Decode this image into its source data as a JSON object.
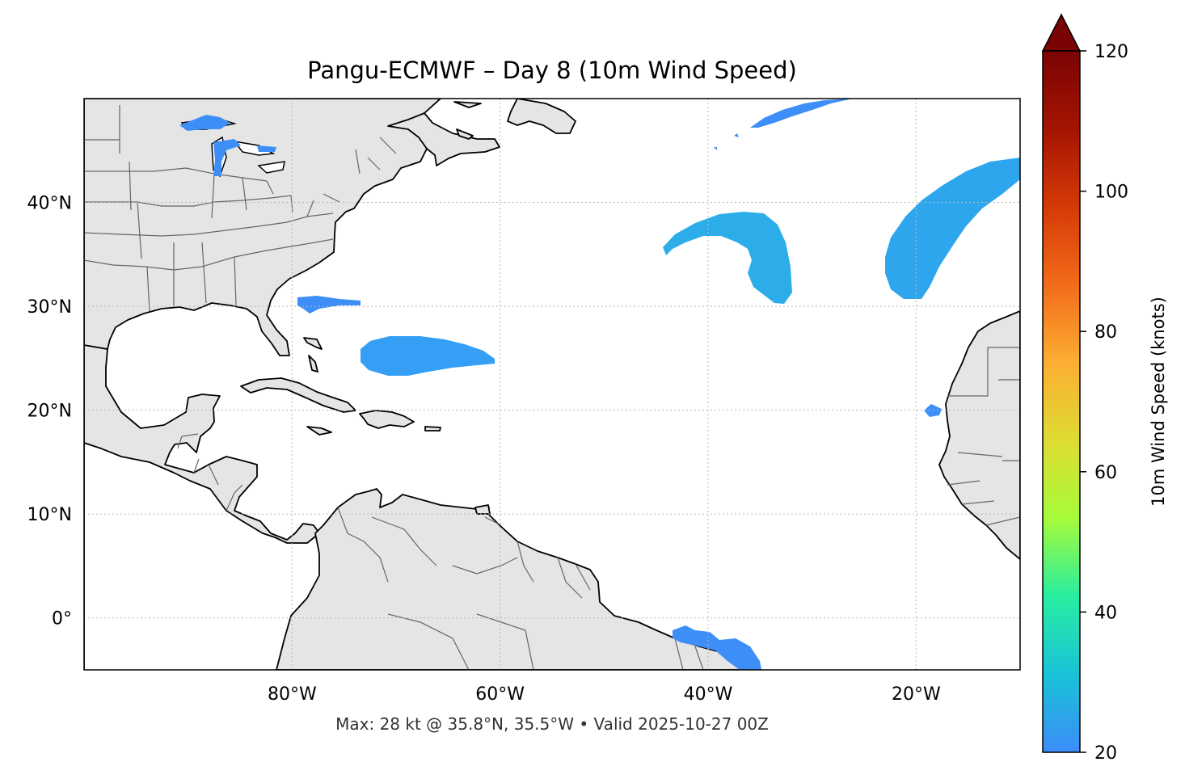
{
  "title": "Pangu-ECMWF – Day 8 (10m Wind Speed)",
  "footer": "Max: 28 kt @ 35.8°N, 35.5°W • Valid 2025-10-27 00Z",
  "map": {
    "lon_range": [
      -100,
      -10
    ],
    "lat_range": [
      -5,
      50
    ],
    "lon_ticks": [
      {
        "value": -80,
        "label": "80°W"
      },
      {
        "value": -60,
        "label": "60°W"
      },
      {
        "value": -40,
        "label": "40°W"
      },
      {
        "value": -20,
        "label": "20°W"
      }
    ],
    "lat_ticks": [
      {
        "value": 40,
        "label": "40°N"
      },
      {
        "value": 30,
        "label": "30°N"
      },
      {
        "value": 20,
        "label": "20°N"
      },
      {
        "value": 10,
        "label": "10°N"
      },
      {
        "value": 0,
        "label": "0°"
      }
    ],
    "gridlines": true,
    "land_color": "#e5e5e5",
    "coast_color": "#000000",
    "border_color": "#666666",
    "wind_fields": [
      {
        "name": "great-lakes",
        "speed_kt": 20
      },
      {
        "name": "off-carolinas",
        "speed_kt": 21
      },
      {
        "name": "near-bahamas",
        "speed_kt": 25
      },
      {
        "name": "mid-atlantic-hook",
        "speed_kt": 28
      },
      {
        "name": "east-atlantic-band",
        "speed_kt": 26
      },
      {
        "name": "north-atlantic-band",
        "speed_kt": 23
      },
      {
        "name": "off-west-africa",
        "speed_kt": 20
      },
      {
        "name": "off-brazil",
        "speed_kt": 22
      }
    ]
  },
  "colorbar": {
    "label": "10m Wind Speed (knots)",
    "min": 20,
    "max": 120,
    "extend": "max",
    "ticks": [
      {
        "value": 20,
        "label": "20"
      },
      {
        "value": 40,
        "label": "40"
      },
      {
        "value": 60,
        "label": "60"
      },
      {
        "value": 80,
        "label": "80"
      },
      {
        "value": 100,
        "label": "100"
      },
      {
        "value": 120,
        "label": "120"
      }
    ],
    "stops": [
      "#3c8cf8",
      "#19c3d8",
      "#28eea0",
      "#a6fb3a",
      "#dedc33",
      "#fcae32",
      "#f26b1a",
      "#d43a06",
      "#a51403",
      "#7a0403"
    ]
  }
}
